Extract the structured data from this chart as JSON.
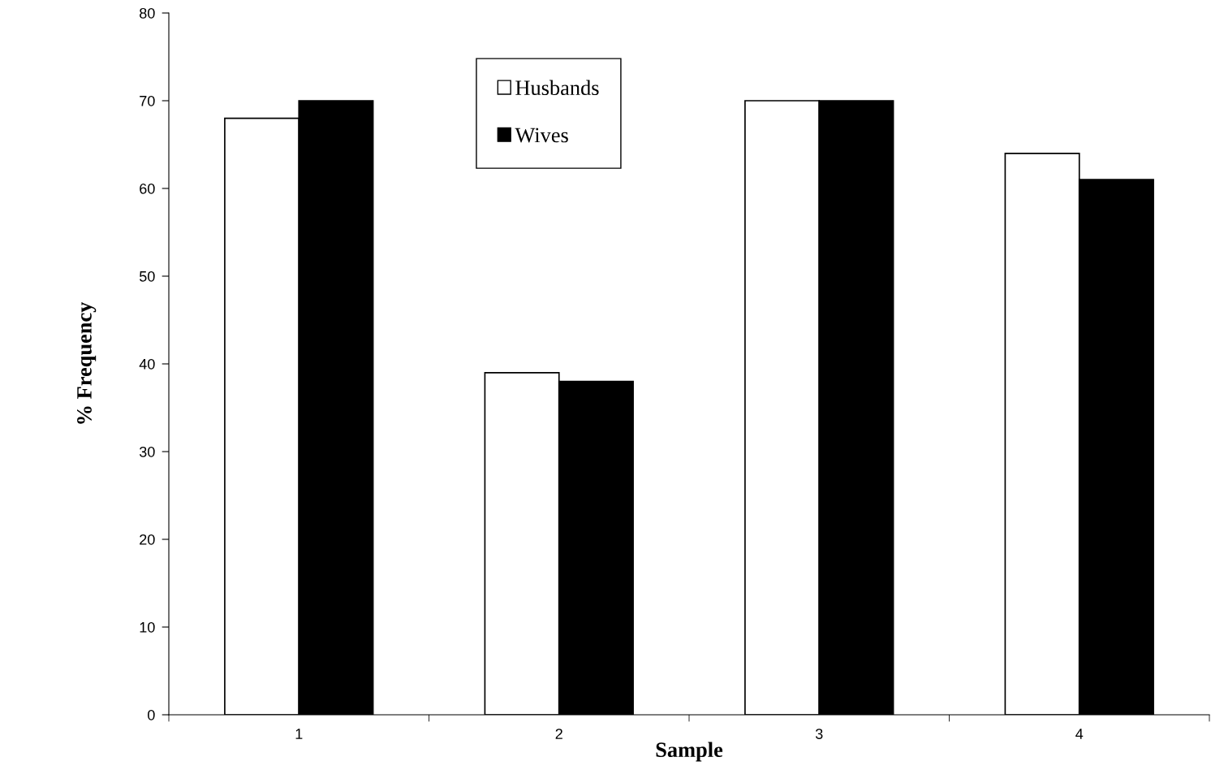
{
  "chart_data": {
    "type": "bar",
    "xlabel": "Sample",
    "ylabel": "% Frequency",
    "categories": [
      "1",
      "2",
      "3",
      "4"
    ],
    "series": [
      {
        "name": "Husbands",
        "color": "#ffffff",
        "values": [
          68,
          39,
          70,
          64
        ]
      },
      {
        "name": "Wives",
        "color": "#000000",
        "values": [
          70,
          38,
          70,
          61
        ]
      }
    ],
    "ylim": [
      0,
      80
    ],
    "yticks": [
      0,
      10,
      20,
      30,
      40,
      50,
      60,
      70,
      80
    ],
    "grid": false,
    "legend": "top"
  }
}
